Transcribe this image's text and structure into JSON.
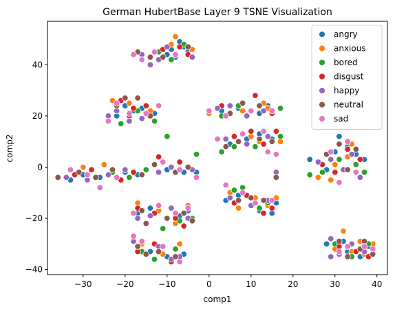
{
  "chart_data": {
    "type": "scatter",
    "title": "German HubertBase Layer 9 TSNE Visualization",
    "xlabel": "comp1",
    "ylabel": "comp2",
    "xlim": [
      -38.5,
      42.5
    ],
    "ylim": [
      -42,
      57
    ],
    "xticks": [
      -30,
      -20,
      -10,
      0,
      10,
      20,
      30,
      40
    ],
    "yticks": [
      -40,
      -20,
      0,
      20,
      40
    ],
    "legend_position": "top-right",
    "series": [
      {
        "name": "angry",
        "color": "#1f77b4",
        "points": [
          [
            -9,
            46
          ],
          [
            -7,
            49
          ],
          [
            -5,
            45
          ],
          [
            -10,
            44
          ],
          [
            -6,
            47
          ],
          [
            -8,
            43
          ],
          [
            -18,
            22
          ],
          [
            -20,
            24
          ],
          [
            -16,
            23
          ],
          [
            -13,
            21
          ],
          [
            -22,
            20
          ],
          [
            -30,
            -3
          ],
          [
            -33,
            -5
          ],
          [
            -26,
            -4
          ],
          [
            -20,
            -2
          ],
          [
            -17,
            -3
          ],
          [
            -10,
            -1
          ],
          [
            -6,
            -2
          ],
          [
            -3,
            -2
          ],
          [
            -17,
            -18
          ],
          [
            -14,
            -16
          ],
          [
            -7,
            -19
          ],
          [
            -5,
            -17
          ],
          [
            -17,
            -31
          ],
          [
            -14,
            -33
          ],
          [
            -10,
            -35
          ],
          [
            -6,
            -34
          ],
          [
            3,
            22
          ],
          [
            7,
            23
          ],
          [
            12,
            21
          ],
          [
            14,
            24
          ],
          [
            9,
            11
          ],
          [
            12,
            13
          ],
          [
            15,
            11
          ],
          [
            5,
            9
          ],
          [
            4,
            -13
          ],
          [
            7,
            -11
          ],
          [
            12,
            -17
          ],
          [
            15,
            -18
          ],
          [
            16,
            -14
          ],
          [
            24,
            3
          ],
          [
            28,
            -1
          ],
          [
            31,
            12
          ],
          [
            33,
            8
          ],
          [
            35,
            5
          ],
          [
            37,
            3
          ],
          [
            30,
            6
          ],
          [
            28,
            -30
          ],
          [
            33,
            -33
          ],
          [
            36,
            -35
          ],
          [
            38,
            -31
          ],
          [
            32,
            -29
          ]
        ]
      },
      {
        "name": "anxious",
        "color": "#ff7f0e",
        "points": [
          [
            -8,
            51
          ],
          [
            -4,
            46
          ],
          [
            -9,
            48
          ],
          [
            -23,
            26
          ],
          [
            -19,
            25
          ],
          [
            -14,
            22
          ],
          [
            -25,
            1
          ],
          [
            -30,
            0
          ],
          [
            -20,
            -1
          ],
          [
            -17,
            -14
          ],
          [
            -12,
            -17
          ],
          [
            -5,
            -15
          ],
          [
            -8,
            -22
          ],
          [
            -16,
            -30
          ],
          [
            -11,
            -34
          ],
          [
            -7,
            -30
          ],
          [
            0,
            21
          ],
          [
            8,
            22
          ],
          [
            13,
            25
          ],
          [
            14,
            23
          ],
          [
            12,
            10
          ],
          [
            17,
            10
          ],
          [
            10,
            12
          ],
          [
            5,
            -10
          ],
          [
            7,
            -16
          ],
          [
            11,
            -12
          ],
          [
            14,
            -15
          ],
          [
            16,
            -12
          ],
          [
            26,
            -4
          ],
          [
            30,
            1
          ],
          [
            33,
            4
          ],
          [
            34,
            9
          ],
          [
            29,
            -5
          ],
          [
            32,
            -25
          ],
          [
            34,
            -33
          ],
          [
            37,
            -34
          ],
          [
            39,
            -30
          ],
          [
            30,
            -32
          ],
          [
            36,
            -29
          ]
        ]
      },
      {
        "name": "bored",
        "color": "#2ca02c",
        "points": [
          [
            -12,
            45
          ],
          [
            -6,
            48
          ],
          [
            -9,
            42
          ],
          [
            -17,
            22
          ],
          [
            -21,
            17
          ],
          [
            -13,
            18
          ],
          [
            -23,
            -2
          ],
          [
            -19,
            -4
          ],
          [
            -15,
            -1
          ],
          [
            -10,
            12
          ],
          [
            -4,
            -1
          ],
          [
            -3,
            5
          ],
          [
            -11,
            -24
          ],
          [
            -7,
            -21
          ],
          [
            -4,
            -20
          ],
          [
            -16,
            -33
          ],
          [
            -8,
            -32
          ],
          [
            -13,
            -36
          ],
          [
            3,
            20
          ],
          [
            7,
            24
          ],
          [
            17,
            23
          ],
          [
            3,
            6
          ],
          [
            6,
            8
          ],
          [
            11,
            8
          ],
          [
            17,
            12
          ],
          [
            6,
            -9
          ],
          [
            8,
            -8
          ],
          [
            12,
            -16
          ],
          [
            14,
            -14
          ],
          [
            24,
            -3
          ],
          [
            27,
            -2
          ],
          [
            31,
            3
          ],
          [
            35,
            1
          ],
          [
            37,
            -2
          ],
          [
            30,
            -30
          ],
          [
            34,
            -35
          ],
          [
            38,
            -30
          ],
          [
            33,
            -31
          ]
        ]
      },
      {
        "name": "disgust",
        "color": "#d62728",
        "points": [
          [
            -11,
            46
          ],
          [
            -5,
            44
          ],
          [
            -7,
            47
          ],
          [
            -21,
            26
          ],
          [
            -18,
            23
          ],
          [
            -15,
            24
          ],
          [
            -19,
            20
          ],
          [
            -28,
            -1
          ],
          [
            -32,
            -3
          ],
          [
            -21,
            -5
          ],
          [
            -18,
            -2
          ],
          [
            -12,
            4
          ],
          [
            -7,
            2
          ],
          [
            -17,
            -16
          ],
          [
            -13,
            -18
          ],
          [
            -8,
            -20
          ],
          [
            -6,
            -23
          ],
          [
            -17,
            -33
          ],
          [
            -13,
            -30
          ],
          [
            -9,
            -37
          ],
          [
            3,
            24
          ],
          [
            11,
            28
          ],
          [
            15,
            21
          ],
          [
            6,
            12
          ],
          [
            10,
            14
          ],
          [
            13,
            9
          ],
          [
            16,
            14
          ],
          [
            6,
            -14
          ],
          [
            9,
            -11
          ],
          [
            13,
            -18
          ],
          [
            15,
            -16
          ],
          [
            27,
            1
          ],
          [
            30,
            -2
          ],
          [
            33,
            7
          ],
          [
            36,
            3
          ],
          [
            31,
            -31
          ],
          [
            35,
            -33
          ],
          [
            38,
            -35
          ]
        ]
      },
      {
        "name": "happy",
        "color": "#9467bd",
        "points": [
          [
            -16,
            44
          ],
          [
            -14,
            40
          ],
          [
            -12,
            42
          ],
          [
            -10,
            47
          ],
          [
            -4,
            43
          ],
          [
            -22,
            22
          ],
          [
            -24,
            20
          ],
          [
            -19,
            18
          ],
          [
            -16,
            19
          ],
          [
            -34,
            -4
          ],
          [
            -29,
            -5
          ],
          [
            -24,
            -3
          ],
          [
            -20,
            -1
          ],
          [
            -12,
            -2
          ],
          [
            -9,
            0
          ],
          [
            -4,
            -1
          ],
          [
            -17,
            -20
          ],
          [
            -14,
            -19
          ],
          [
            -9,
            -16
          ],
          [
            -5,
            -20
          ],
          [
            -18,
            -29
          ],
          [
            -12,
            -31
          ],
          [
            -9,
            -36
          ],
          [
            -7,
            -35
          ],
          [
            2,
            23
          ],
          [
            5,
            24
          ],
          [
            9,
            20
          ],
          [
            13,
            22
          ],
          [
            4,
            11
          ],
          [
            9,
            9
          ],
          [
            14,
            12
          ],
          [
            16,
            -2
          ],
          [
            5,
            -12
          ],
          [
            10,
            -15
          ],
          [
            14,
            -13
          ],
          [
            26,
            2
          ],
          [
            29,
            3
          ],
          [
            32,
            -1
          ],
          [
            34,
            5
          ],
          [
            36,
            -4
          ],
          [
            29,
            -28
          ],
          [
            31,
            -34
          ],
          [
            34,
            -30
          ],
          [
            37,
            -33
          ],
          [
            29,
            -35
          ]
        ]
      },
      {
        "name": "neutral",
        "color": "#8c564b",
        "points": [
          [
            -17,
            45
          ],
          [
            -14,
            43
          ],
          [
            -11,
            43
          ],
          [
            -5,
            47
          ],
          [
            -20,
            27
          ],
          [
            -22,
            24
          ],
          [
            -17,
            27
          ],
          [
            -14,
            20
          ],
          [
            -36,
            -4
          ],
          [
            -31,
            -2
          ],
          [
            -27,
            -4
          ],
          [
            -23,
            -1
          ],
          [
            -16,
            -3
          ],
          [
            -13,
            1
          ],
          [
            -8,
            -2
          ],
          [
            -5,
            0
          ],
          [
            -16,
            -17
          ],
          [
            -15,
            -22
          ],
          [
            -10,
            -20
          ],
          [
            -6,
            -18
          ],
          [
            -4,
            -21
          ],
          [
            -17,
            -31
          ],
          [
            -15,
            -34
          ],
          [
            -12,
            -33
          ],
          [
            -8,
            -35
          ],
          [
            5,
            21
          ],
          [
            8,
            25
          ],
          [
            12,
            24
          ],
          [
            4,
            8
          ],
          [
            7,
            10
          ],
          [
            12,
            11
          ],
          [
            15,
            10
          ],
          [
            16,
            -4
          ],
          [
            7,
            -13
          ],
          [
            10,
            -12
          ],
          [
            13,
            -13
          ],
          [
            28,
            5
          ],
          [
            31,
            9
          ],
          [
            33,
            -1
          ],
          [
            35,
            7
          ],
          [
            31,
            -29
          ],
          [
            33,
            -35
          ],
          [
            36,
            -32
          ],
          [
            37,
            -29
          ],
          [
            39,
            -34
          ]
        ]
      },
      {
        "name": "sad",
        "color": "#e377c2",
        "points": [
          [
            -18,
            44
          ],
          [
            -16,
            42
          ],
          [
            -13,
            45
          ],
          [
            -8,
            44
          ],
          [
            -24,
            18
          ],
          [
            -22,
            25
          ],
          [
            -19,
            21
          ],
          [
            -15,
            21
          ],
          [
            -12,
            24
          ],
          [
            -33,
            -1
          ],
          [
            -29,
            -3
          ],
          [
            -26,
            -8
          ],
          [
            -22,
            -4
          ],
          [
            -11,
            2
          ],
          [
            -7,
            -1
          ],
          [
            -3,
            -4
          ],
          [
            -18,
            -18
          ],
          [
            -12,
            -15
          ],
          [
            -8,
            -18
          ],
          [
            -5,
            -16
          ],
          [
            -18,
            -27
          ],
          [
            -16,
            -29
          ],
          [
            -11,
            -31
          ],
          [
            -7,
            -37
          ],
          [
            0,
            22
          ],
          [
            4,
            20
          ],
          [
            10,
            22
          ],
          [
            15,
            22
          ],
          [
            2,
            11
          ],
          [
            8,
            13
          ],
          [
            13,
            14
          ],
          [
            14,
            6
          ],
          [
            16,
            5
          ],
          [
            4,
            -7
          ],
          [
            8,
            -10
          ],
          [
            11,
            -14
          ],
          [
            15,
            -13
          ],
          [
            29,
            6
          ],
          [
            31,
            -6
          ],
          [
            33,
            10
          ],
          [
            35,
            -2
          ],
          [
            31,
            -33
          ],
          [
            33,
            -31
          ],
          [
            37,
            -31
          ],
          [
            39,
            -32
          ]
        ]
      }
    ]
  }
}
